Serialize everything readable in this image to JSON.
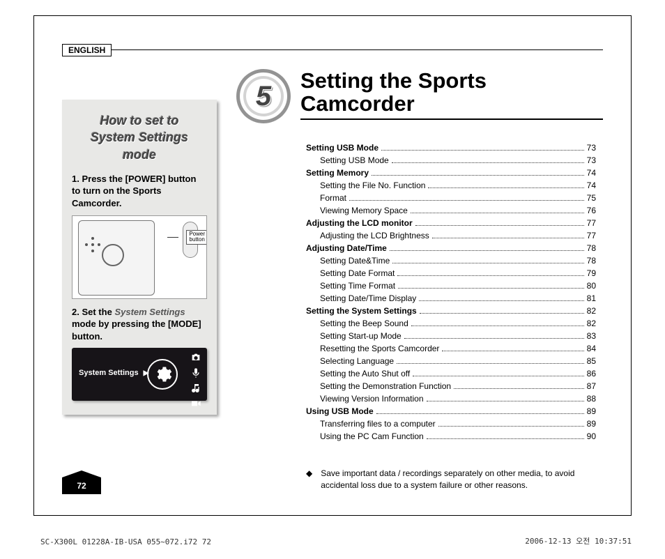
{
  "lang_badge": "ENGLISH",
  "sidebar": {
    "title_line1": "How to set to",
    "title_line2": "System Settings",
    "title_line3": "mode",
    "step1_num": "1.",
    "step1_text": "Press the [POWER] button to turn on the Sports Camcorder.",
    "step2_num": "2.",
    "step2_pre": "Set the ",
    "step2_em": "System Settings",
    "step2_post": " mode by pressing the [MODE] button.",
    "device_label_l1": "Power",
    "device_label_l2": "button",
    "sys_screen_label": "System Settings"
  },
  "chapter": {
    "number": "5",
    "title_line1": "Setting the Sports",
    "title_line2": "Camcorder"
  },
  "toc": [
    {
      "label": "Setting USB Mode",
      "page": "73",
      "bold": true,
      "sub": false
    },
    {
      "label": "Setting USB Mode",
      "page": "73",
      "bold": false,
      "sub": true
    },
    {
      "label": "Setting Memory",
      "page": "74",
      "bold": true,
      "sub": false
    },
    {
      "label": "Setting the File No. Function",
      "page": "74",
      "bold": false,
      "sub": true
    },
    {
      "label": "Format",
      "page": "75",
      "bold": false,
      "sub": true
    },
    {
      "label": "Viewing Memory Space",
      "page": "76",
      "bold": false,
      "sub": true
    },
    {
      "label": "Adjusting the LCD monitor",
      "page": "77",
      "bold": true,
      "sub": false
    },
    {
      "label": "Adjusting the LCD Brightness",
      "page": "77",
      "bold": false,
      "sub": true
    },
    {
      "label": "Adjusting Date/Time",
      "page": "78",
      "bold": true,
      "sub": false
    },
    {
      "label": "Setting Date&Time",
      "page": "78",
      "bold": false,
      "sub": true
    },
    {
      "label": "Setting Date Format",
      "page": "79",
      "bold": false,
      "sub": true
    },
    {
      "label": "Setting Time Format",
      "page": "80",
      "bold": false,
      "sub": true
    },
    {
      "label": "Setting Date/Time Display",
      "page": "81",
      "bold": false,
      "sub": true
    },
    {
      "label": "Setting the System Settings",
      "page": "82",
      "bold": true,
      "sub": false
    },
    {
      "label": "Setting the Beep Sound",
      "page": "82",
      "bold": false,
      "sub": true
    },
    {
      "label": "Setting Start-up Mode",
      "page": "83",
      "bold": false,
      "sub": true
    },
    {
      "label": "Resetting the Sports Camcorder",
      "page": "84",
      "bold": false,
      "sub": true
    },
    {
      "label": "Selecting Language",
      "page": "85",
      "bold": false,
      "sub": true
    },
    {
      "label": "Setting the Auto Shut off",
      "page": "86",
      "bold": false,
      "sub": true
    },
    {
      "label": "Setting the Demonstration Function",
      "page": "87",
      "bold": false,
      "sub": true
    },
    {
      "label": "Viewing Version Information",
      "page": "88",
      "bold": false,
      "sub": true
    },
    {
      "label": "Using USB Mode",
      "page": "89",
      "bold": true,
      "sub": false
    },
    {
      "label": "Transferring files to a computer",
      "page": "89",
      "bold": false,
      "sub": true
    },
    {
      "label": "Using the PC Cam Function",
      "page": "90",
      "bold": false,
      "sub": true
    }
  ],
  "note": {
    "bullet": "◆",
    "text": "Save important data / recordings separately on other media, to avoid accidental loss due to a system failure or other reasons."
  },
  "page_number": "72",
  "footer": {
    "left": "SC-X300L 01228A-IB-USA 055~072.i72   72",
    "right": "2006-12-13   오전 10:37:51"
  }
}
